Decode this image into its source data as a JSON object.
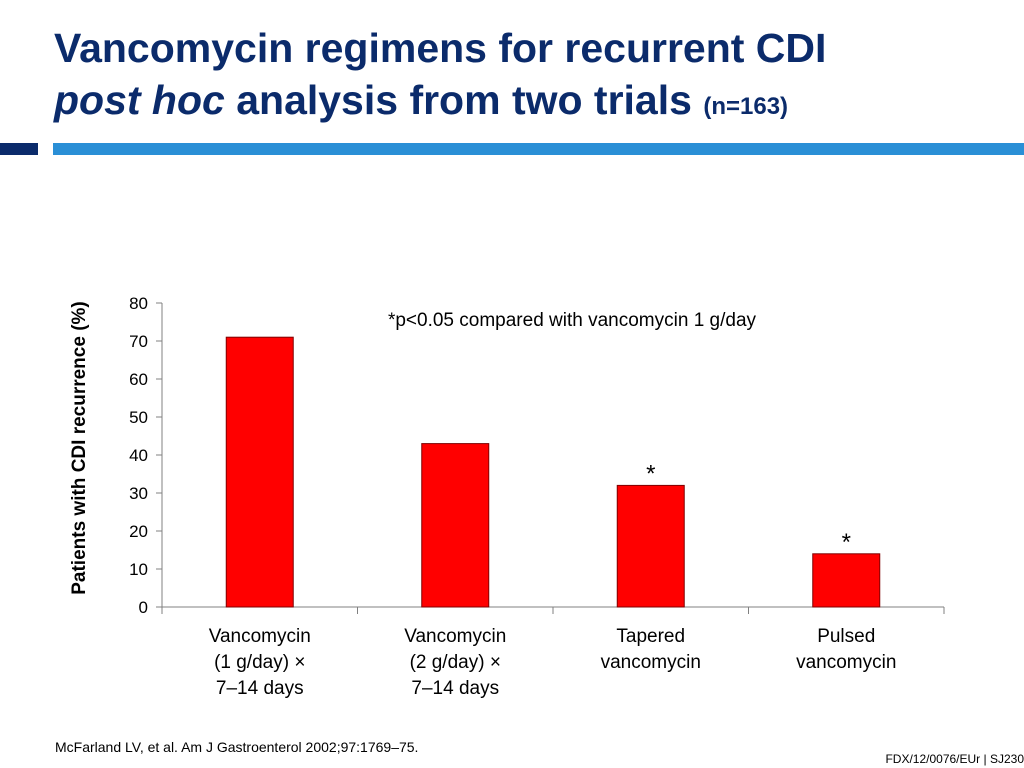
{
  "title": {
    "line1": "Vancomycin regimens for recurrent CDI",
    "line2_italic": "post hoc",
    "line2_rest": " analysis from two trials",
    "n_label": "(n=163)"
  },
  "chart_data": {
    "type": "bar",
    "categories": [
      [
        "Vancomycin",
        "(1 g/day) ×",
        "7–14 days"
      ],
      [
        "Vancomycin",
        "(2 g/day) ×",
        "7–14 days"
      ],
      [
        "Tapered",
        "vancomycin"
      ],
      [
        "Pulsed",
        "vancomycin"
      ]
    ],
    "values": [
      71,
      43,
      32,
      14
    ],
    "significance": [
      "",
      "",
      "*",
      "*"
    ],
    "ylabel": "Patients with CDI recurrence (%)",
    "ylim": [
      0,
      80
    ],
    "yticks": [
      0,
      10,
      20,
      30,
      40,
      50,
      60,
      70,
      80
    ],
    "annotation": "*p<0.05 compared with vancomycin 1 g/day",
    "bar_color": "#ff0000",
    "bar_edge_color": "#800000",
    "grid": false
  },
  "footer": {
    "reference": "McFarland LV, et al. Am J Gastroenterol 2002;97:1769–75.",
    "code": "FDX/12/0076/EUr | SJ230"
  }
}
